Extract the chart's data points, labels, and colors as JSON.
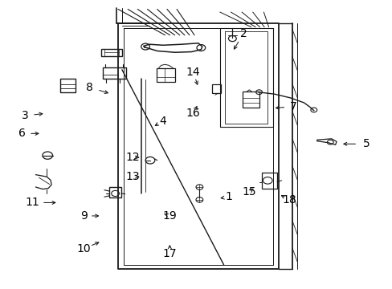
{
  "bg_color": "#ffffff",
  "line_color": "#1a1a1a",
  "label_color": "#000000",
  "font_size": 10,
  "dpi": 100,
  "fig_w": 4.89,
  "fig_h": 3.6,
  "arrows": {
    "2": {
      "lpos": [
        0.62,
        0.115
      ],
      "ppos": [
        0.592,
        0.178
      ]
    },
    "3": {
      "lpos": [
        0.062,
        0.4
      ],
      "ppos": [
        0.115,
        0.392
      ]
    },
    "4": {
      "lpos": [
        0.415,
        0.418
      ],
      "ppos": [
        0.388,
        0.44
      ]
    },
    "5": {
      "lpos": [
        0.935,
        0.498
      ],
      "ppos": [
        0.868,
        0.498
      ]
    },
    "6": {
      "lpos": [
        0.055,
        0.462
      ],
      "ppos": [
        0.105,
        0.462
      ]
    },
    "7": {
      "lpos": [
        0.748,
        0.368
      ],
      "ppos": [
        0.695,
        0.374
      ]
    },
    "8": {
      "lpos": [
        0.228,
        0.302
      ],
      "ppos": [
        0.282,
        0.324
      ]
    },
    "9": {
      "lpos": [
        0.212,
        0.748
      ],
      "ppos": [
        0.258,
        0.748
      ]
    },
    "10": {
      "lpos": [
        0.212,
        0.862
      ],
      "ppos": [
        0.258,
        0.836
      ]
    },
    "11": {
      "lpos": [
        0.082,
        0.702
      ],
      "ppos": [
        0.148,
        0.702
      ]
    },
    "12": {
      "lpos": [
        0.338,
        0.545
      ],
      "ppos": [
        0.36,
        0.545
      ]
    },
    "13": {
      "lpos": [
        0.338,
        0.612
      ],
      "ppos": [
        0.36,
        0.612
      ]
    },
    "14": {
      "lpos": [
        0.492,
        0.248
      ],
      "ppos": [
        0.505,
        0.302
      ]
    },
    "15": {
      "lpos": [
        0.635,
        0.665
      ],
      "ppos": [
        0.65,
        0.648
      ]
    },
    "16": {
      "lpos": [
        0.492,
        0.392
      ],
      "ppos": [
        0.505,
        0.358
      ]
    },
    "17": {
      "lpos": [
        0.432,
        0.878
      ],
      "ppos": [
        0.432,
        0.84
      ]
    },
    "18": {
      "lpos": [
        0.738,
        0.692
      ],
      "ppos": [
        0.71,
        0.672
      ]
    },
    "19": {
      "lpos": [
        0.432,
        0.748
      ],
      "ppos": [
        0.412,
        0.738
      ]
    },
    "1": {
      "lpos": [
        0.582,
        0.682
      ],
      "ppos": [
        0.555,
        0.688
      ]
    }
  }
}
